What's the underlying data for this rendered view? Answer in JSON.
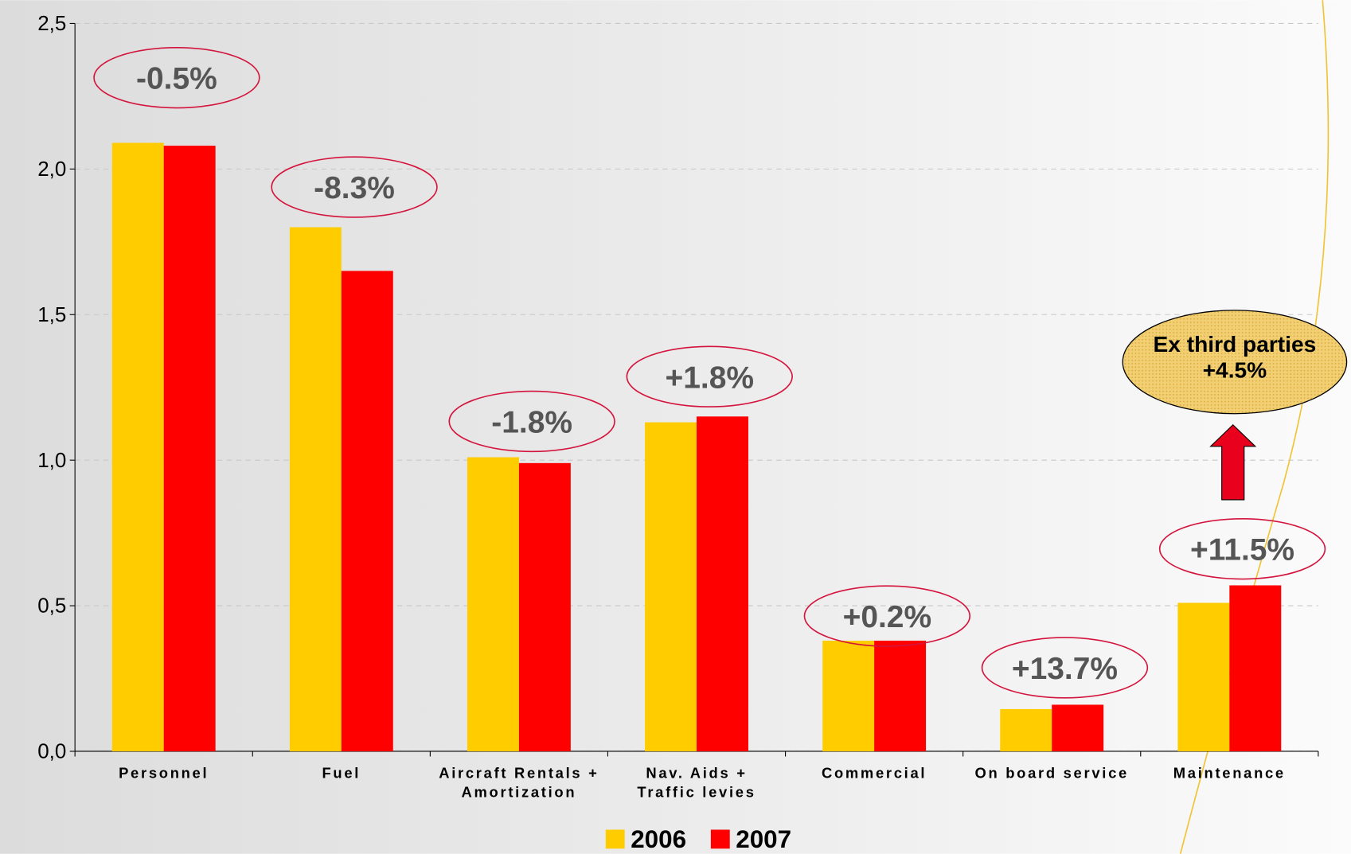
{
  "chart_data": {
    "type": "bar",
    "categories": [
      "Personnel",
      "Fuel",
      "Aircraft Rentals +\nAmortization",
      "Nav. Aids +\nTraffic levies",
      "Commercial",
      "On board service",
      "Maintenance"
    ],
    "series": [
      {
        "name": "2006",
        "color": "#FFCC00",
        "values": [
          2.09,
          1.8,
          1.01,
          1.13,
          0.38,
          0.145,
          0.51
        ]
      },
      {
        "name": "2007",
        "color": "#FF0000",
        "values": [
          2.08,
          1.65,
          0.99,
          1.15,
          0.38,
          0.16,
          0.57
        ]
      }
    ],
    "annotations": [
      "-0.5%",
      "-8.3%",
      "-1.8%",
      "+1.8%",
      "+0.2%",
      "+13.7%",
      "+11.5%"
    ],
    "callout": "Ex third parties\n+4.5%",
    "ylim": [
      0,
      2.5
    ],
    "yticks": [
      {
        "value": 0,
        "label": "0,0"
      },
      {
        "value": 0.5,
        "label": "0,5"
      },
      {
        "value": 1,
        "label": "1,0"
      },
      {
        "value": 1.5,
        "label": "1,5"
      },
      {
        "value": 2,
        "label": "2,0"
      },
      {
        "value": 2.5,
        "label": "2,5"
      }
    ],
    "grid": true
  }
}
